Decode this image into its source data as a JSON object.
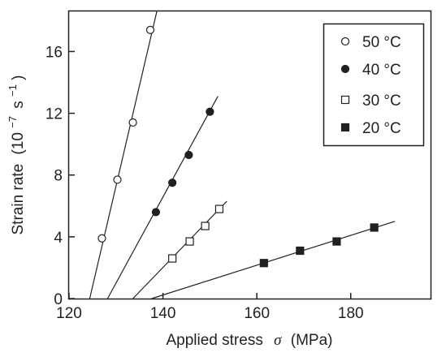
{
  "chart_data": {
    "type": "scatter",
    "title": "",
    "xlabel": "Applied stress",
    "xlabel_symbol": "σ",
    "xlabel_unit": "(MPa)",
    "ylabel": "Strain rate",
    "ylabel_unit_base": "10",
    "ylabel_unit_exp1": "−7",
    "ylabel_unit_s": "s",
    "ylabel_unit_exp2": "−1",
    "xlim": [
      120,
      197
    ],
    "ylim": [
      0,
      18.6
    ],
    "xticks": [
      120,
      140,
      160,
      180
    ],
    "yticks": [
      0,
      4,
      8,
      12,
      16
    ],
    "grid": false,
    "legend_position": "top-right",
    "series": [
      {
        "name": "50 °C",
        "marker": "open-circle",
        "points": [
          [
            127.0,
            3.9
          ],
          [
            130.3,
            7.7
          ],
          [
            133.6,
            11.4
          ],
          [
            137.3,
            17.4
          ]
        ],
        "fit_line": [
          [
            124.4,
            0
          ],
          [
            138.7,
            18.6
          ]
        ]
      },
      {
        "name": "40 °C",
        "marker": "filled-circle",
        "points": [
          [
            138.5,
            5.6
          ],
          [
            142.0,
            7.5
          ],
          [
            145.5,
            9.3
          ],
          [
            150.0,
            12.1
          ]
        ],
        "fit_line": [
          [
            128.2,
            0
          ],
          [
            151.7,
            13.1
          ]
        ]
      },
      {
        "name": "30 °C",
        "marker": "open-square",
        "points": [
          [
            142.0,
            2.6
          ],
          [
            145.7,
            3.7
          ],
          [
            149.0,
            4.7
          ],
          [
            152.0,
            5.8
          ]
        ],
        "fit_line": [
          [
            133.6,
            0
          ],
          [
            153.6,
            6.3
          ]
        ]
      },
      {
        "name": "20 °C",
        "marker": "filled-square",
        "points": [
          [
            161.5,
            2.3
          ],
          [
            169.2,
            3.1
          ],
          [
            177.0,
            3.7
          ],
          [
            185.0,
            4.6
          ]
        ],
        "fit_line": [
          [
            137.6,
            0
          ],
          [
            189.4,
            5.0
          ]
        ]
      }
    ]
  }
}
